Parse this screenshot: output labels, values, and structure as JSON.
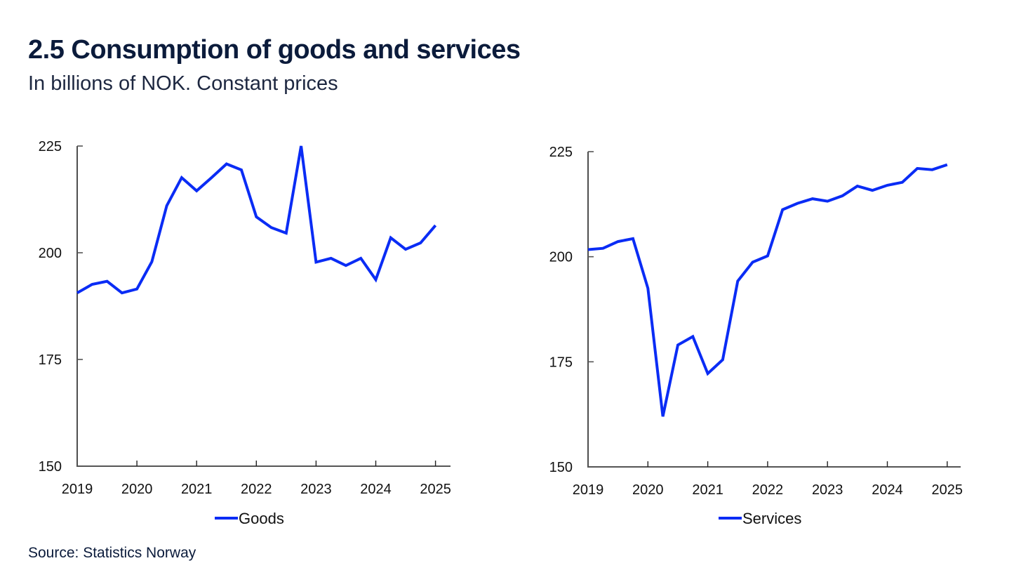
{
  "header": {
    "title": "2.5 Consumption of goods and services",
    "subtitle": "In billions of NOK. Constant prices"
  },
  "footer": {
    "source": "Source: Statistics Norway"
  },
  "colors": {
    "series_line": "#0a2cf5",
    "axis": "#555555",
    "title": "#0b1b3b"
  },
  "chart_data": [
    {
      "type": "line",
      "title": "",
      "xlabel": "",
      "ylabel": "",
      "ylim": [
        150,
        225
      ],
      "yticks": [
        150,
        175,
        200,
        225
      ],
      "xticks": [
        "2019",
        "2020",
        "2021",
        "2022",
        "2023",
        "2024",
        "2025"
      ],
      "xlim": [
        2019,
        2025.25
      ],
      "grid": false,
      "legend_position": "bottom-center",
      "frequency": "quarterly",
      "x_start": "2019Q1",
      "series": [
        {
          "name": "Goods",
          "values": [
            190.6,
            192.6,
            193.3,
            190.6,
            191.5,
            197.9,
            211.0,
            217.6,
            214.5,
            217.6,
            220.8,
            219.4,
            208.4,
            205.9,
            204.6,
            225.0,
            197.8,
            198.7,
            197.0,
            198.7,
            193.7,
            203.5,
            200.8,
            202.3,
            206.4
          ]
        }
      ]
    },
    {
      "type": "line",
      "title": "",
      "xlabel": "",
      "ylabel": "",
      "ylim": [
        150,
        225
      ],
      "yticks": [
        150,
        175,
        200,
        225
      ],
      "xticks": [
        "2019",
        "2020",
        "2021",
        "2022",
        "2023",
        "2024",
        "2025"
      ],
      "xlim": [
        2019,
        2025.25
      ],
      "grid": false,
      "legend_position": "bottom-center",
      "frequency": "quarterly",
      "x_start": "2019Q1",
      "series": [
        {
          "name": "Services",
          "values": [
            201.7,
            202.0,
            203.6,
            204.3,
            192.5,
            162.0,
            179.0,
            181.0,
            172.2,
            175.5,
            194.2,
            198.7,
            200.2,
            211.2,
            212.7,
            213.8,
            213.2,
            214.5,
            216.8,
            215.8,
            217.0,
            217.7,
            221.0,
            220.7,
            221.9
          ]
        }
      ]
    }
  ]
}
